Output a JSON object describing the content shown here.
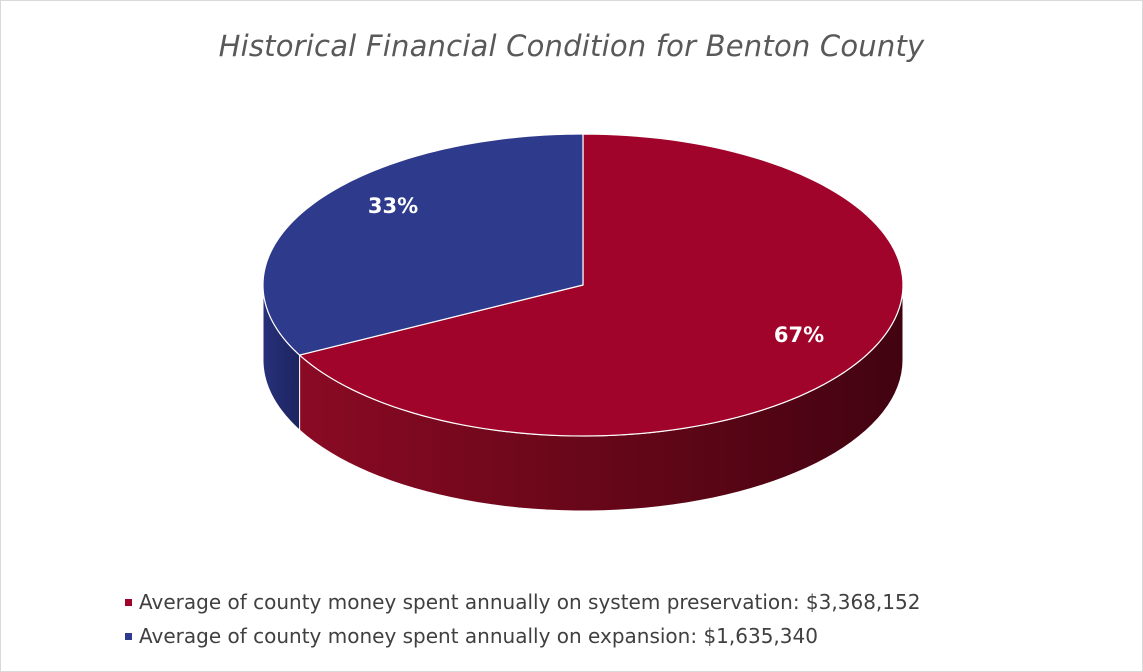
{
  "chart_data": {
    "type": "pie",
    "title": "Historical Financial Condition for Benton County",
    "slices": [
      {
        "name": "Average of county money spent annually on system preservation: $3,368,152",
        "value": 3368152,
        "percent_label": "67%",
        "color": "#a0042a"
      },
      {
        "name": "Average of county money spent annually on expansion: $1,635,340",
        "value": 1635340,
        "percent_label": "33%",
        "color": "#2e3a8b"
      }
    ],
    "legend_position": "bottom",
    "style": "3d"
  }
}
